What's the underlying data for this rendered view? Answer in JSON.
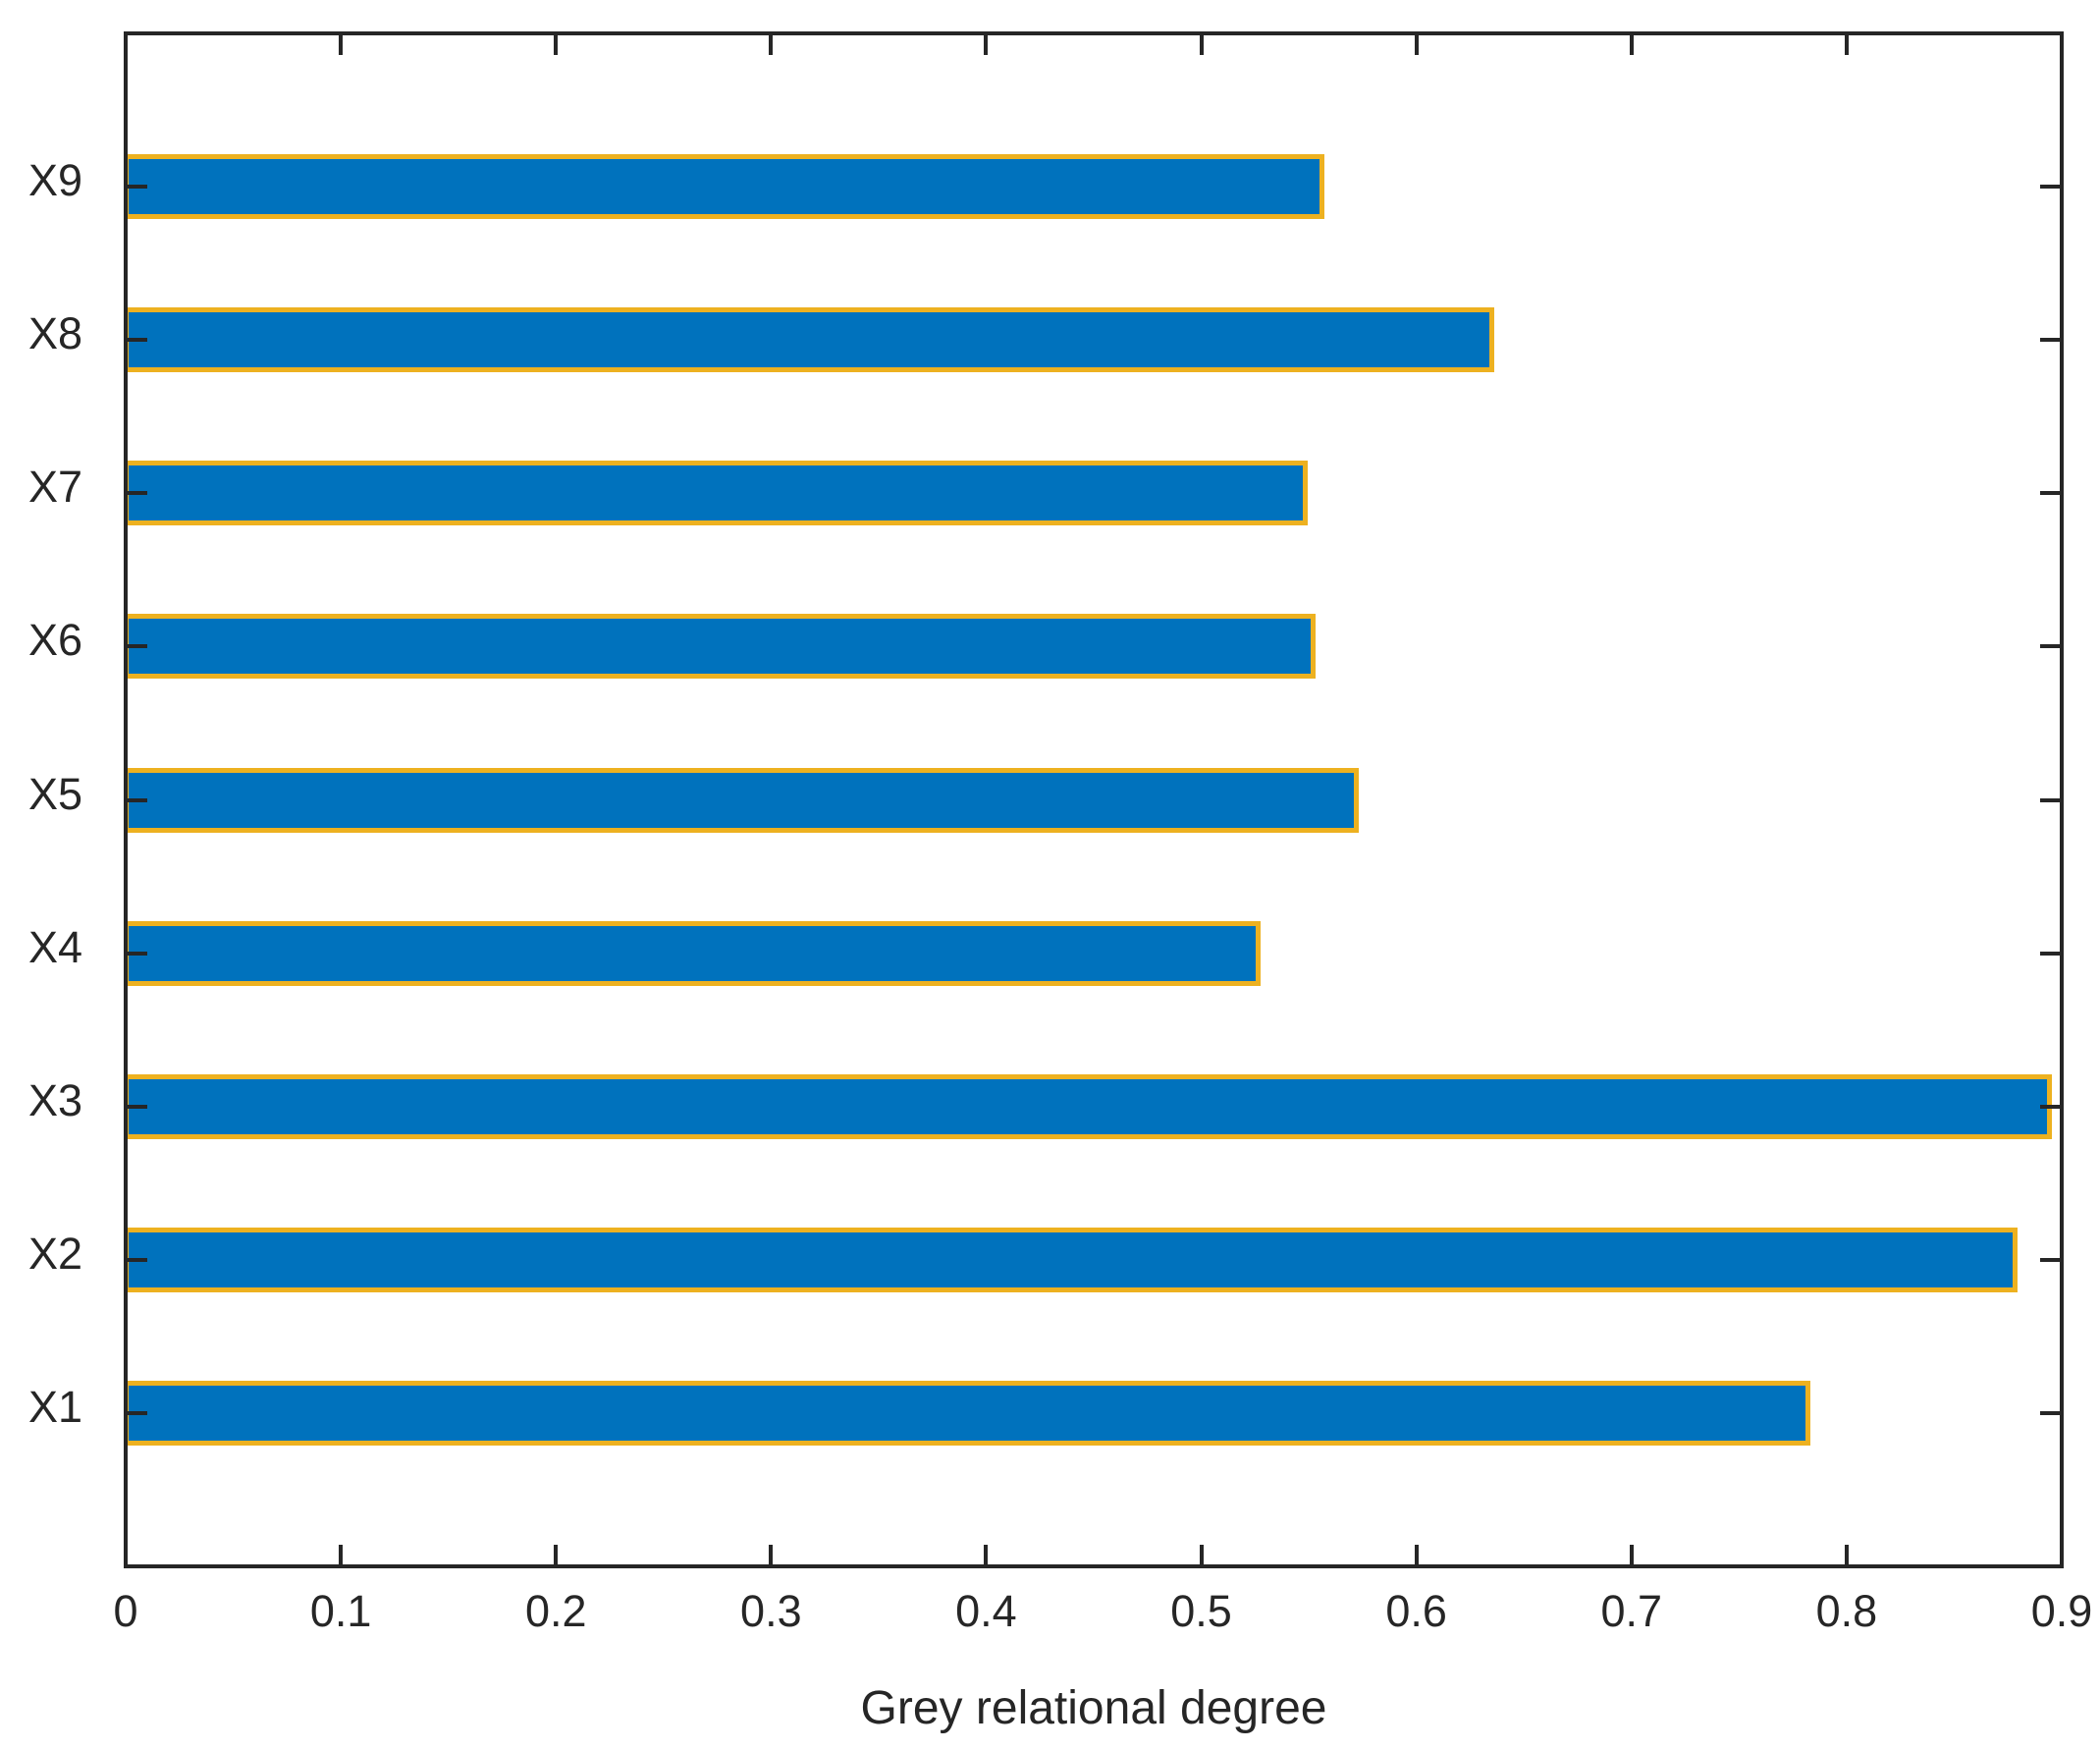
{
  "figure": {
    "xlabel": "Grey relational degree"
  },
  "chart_data": {
    "type": "bar",
    "orientation": "horizontal",
    "title": "",
    "xlabel": "Grey relational degree",
    "ylabel": "",
    "categories": [
      "X1",
      "X2",
      "X3",
      "X4",
      "X5",
      "X6",
      "X7",
      "X8",
      "X9"
    ],
    "values": [
      0.782,
      0.878,
      0.894,
      0.526,
      0.572,
      0.552,
      0.548,
      0.635,
      0.556
    ],
    "xlim": [
      0,
      0.9
    ],
    "x_ticks": [
      0,
      0.1,
      0.2,
      0.3,
      0.4,
      0.5,
      0.6,
      0.7,
      0.8,
      0.9
    ],
    "x_tick_labels": [
      "0",
      "0.1",
      "0.2",
      "0.3",
      "0.4",
      "0.5",
      "0.6",
      "0.7",
      "0.8",
      "0.9"
    ],
    "grid": false,
    "legend": null,
    "box": true,
    "tick_direction": "in",
    "bar_fill_color": "#0072BD",
    "bar_edge_color": "#EDB120",
    "axis_color": "#262626"
  }
}
